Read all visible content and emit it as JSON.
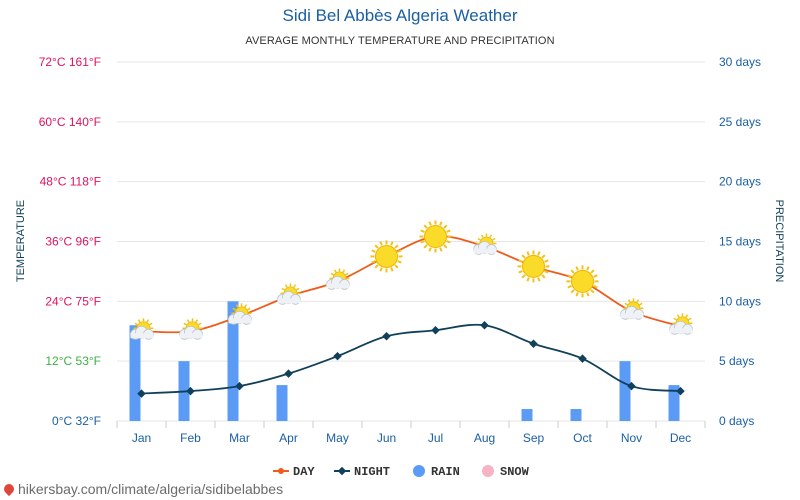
{
  "title": "Sidi Bel Abbès Algeria Weather",
  "subtitle": "AVERAGE MONTHLY TEMPERATURE AND PRECIPITATION",
  "footer": "hikersbay.com/climate/algeria/sidibelabbes",
  "colors": {
    "day": "#f05a1a",
    "night": "#11405a",
    "rain": "#5b9bf5",
    "snow": "#f7b3c6",
    "left_axis_top": "#e0115f",
    "left_axis_mid": "#3fb043",
    "left_axis_zero": "#1a5fa3",
    "right_axis": "#1a5fa3",
    "grid": "#e6e6e6"
  },
  "chart_data": {
    "type": "line",
    "categories": [
      "Jan",
      "Feb",
      "Mar",
      "Apr",
      "May",
      "Jun",
      "Jul",
      "Aug",
      "Sep",
      "Oct",
      "Nov",
      "Dec"
    ],
    "ylabel": "TEMPERATURE",
    "y2label": "PRECIPITATION",
    "ylim": [
      0,
      72
    ],
    "y2lim": [
      0,
      30
    ],
    "left_ticks": [
      {
        "value": 0,
        "label": "0°C 32°F"
      },
      {
        "value": 12,
        "label": "12°C 53°F"
      },
      {
        "value": 24,
        "label": "24°C 75°F"
      },
      {
        "value": 36,
        "label": "36°C 96°F"
      },
      {
        "value": 48,
        "label": "48°C 118°F"
      },
      {
        "value": 60,
        "label": "60°C 140°F"
      },
      {
        "value": 72,
        "label": "72°C 161°F"
      }
    ],
    "right_ticks": [
      {
        "value": 0,
        "label": "0 days"
      },
      {
        "value": 5,
        "label": "5 days"
      },
      {
        "value": 10,
        "label": "10 days"
      },
      {
        "value": 15,
        "label": "15 days"
      },
      {
        "value": 20,
        "label": "20 days"
      },
      {
        "value": 25,
        "label": "25 days"
      },
      {
        "value": 30,
        "label": "30 days"
      }
    ],
    "series": [
      {
        "name": "DAY",
        "axis": "left",
        "values": [
          18,
          18,
          21,
          25,
          28,
          33,
          37,
          35,
          31,
          28,
          22,
          19
        ]
      },
      {
        "name": "NIGHT",
        "axis": "left",
        "values": [
          5.5,
          6,
          7,
          9.5,
          13,
          17,
          18.2,
          19.2,
          15.5,
          12.5,
          7,
          6
        ]
      },
      {
        "name": "RAIN",
        "axis": "right",
        "type": "bar",
        "values": [
          8,
          5,
          10,
          3,
          0,
          0,
          0,
          0,
          1,
          1,
          5,
          3
        ]
      },
      {
        "name": "SNOW",
        "axis": "right",
        "type": "bar",
        "values": [
          0,
          0,
          0,
          0,
          0,
          0,
          0,
          0,
          0,
          0,
          0,
          0
        ]
      }
    ],
    "weather_icons": [
      "partly-cloudy-icon",
      "partly-cloudy-icon",
      "partly-cloudy-icon",
      "partly-cloudy-icon",
      "partly-cloudy-icon",
      "sun-icon",
      "sun-icon",
      "partly-cloudy-icon",
      "sun-icon",
      "sun-icon",
      "partly-cloudy-icon",
      "partly-cloudy-icon"
    ],
    "legend": {
      "position": "bottom",
      "items": [
        "DAY",
        "NIGHT",
        "RAIN",
        "SNOW"
      ]
    },
    "grid": true
  }
}
